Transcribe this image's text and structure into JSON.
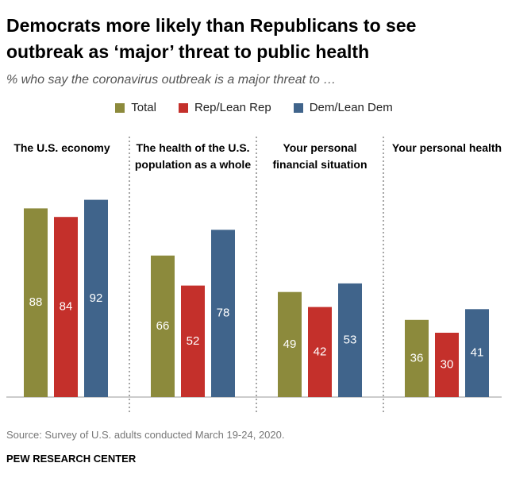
{
  "chart_data": {
    "type": "bar",
    "title": "Democrats more likely than Republicans to see outbreak as ‘major’ threat to public health",
    "subtitle": "% who say the coronavirus outbreak is a major threat to …",
    "categories": [
      "The U.S. economy",
      "The health of the U.S. population as a whole",
      "Your personal financial situation",
      "Your personal health"
    ],
    "series": [
      {
        "name": "Total",
        "color": "#8c8a3c",
        "values": [
          88,
          66,
          49,
          36
        ]
      },
      {
        "name": "Rep/Lean Rep",
        "color": "#c4302b",
        "values": [
          84,
          52,
          42,
          30
        ]
      },
      {
        "name": "Dem/Lean Dem",
        "color": "#40648b",
        "values": [
          92,
          78,
          53,
          41
        ]
      }
    ],
    "source": "Source: Survey of U.S. adults conducted March 19-24, 2020.",
    "credit": "PEW RESEARCH CENTER"
  }
}
